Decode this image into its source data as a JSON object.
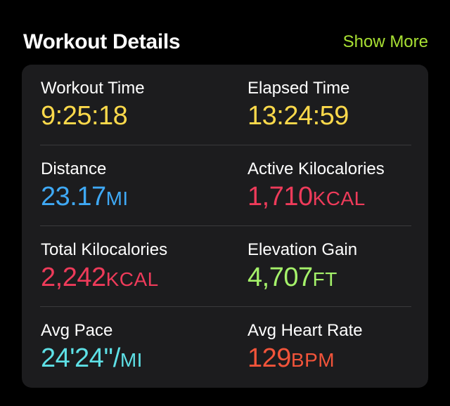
{
  "header": {
    "title": "Workout Details",
    "show_more_label": "Show More",
    "show_more_color": "#a8e033"
  },
  "metrics": [
    {
      "label": "Workout Time",
      "value": "9:25:18",
      "unit": "",
      "color": "#fcd94b"
    },
    {
      "label": "Elapsed Time",
      "value": "13:24:59",
      "unit": "",
      "color": "#fcd94b"
    },
    {
      "label": "Distance",
      "value": "23.17",
      "unit": "MI",
      "color": "#3fa9f5"
    },
    {
      "label": "Active Kilocalories",
      "value": "1,710",
      "unit": "KCAL",
      "color": "#ee3b5a"
    },
    {
      "label": "Total Kilocalories",
      "value": "2,242",
      "unit": "KCAL",
      "color": "#ee3b5a"
    },
    {
      "label": "Elevation Gain",
      "value": "4,707",
      "unit": "FT",
      "color": "#a5f26a"
    },
    {
      "label": "Avg Pace",
      "value": "24'24''/",
      "unit": "MI",
      "color": "#5ee0e6"
    },
    {
      "label": "Avg Heart Rate",
      "value": "129",
      "unit": "BPM",
      "color": "#f2543a"
    }
  ]
}
